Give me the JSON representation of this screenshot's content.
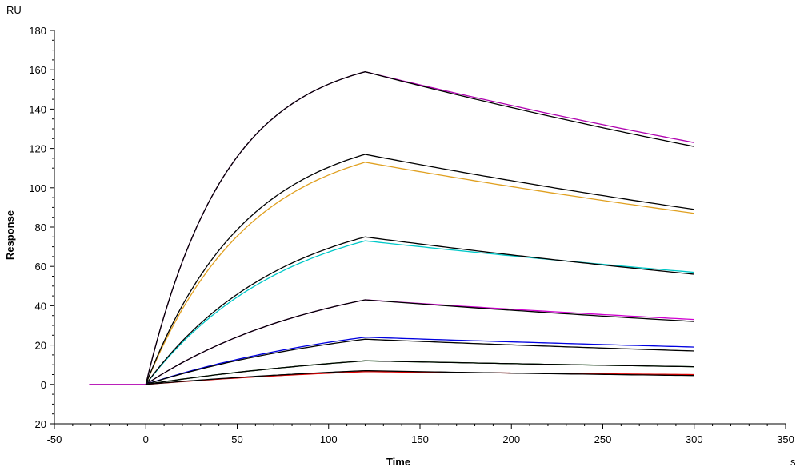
{
  "chart_data": {
    "type": "line",
    "title": "",
    "xlabel": "Time",
    "ylabel": "Response",
    "x_unit": "s",
    "y_unit": "RU",
    "xlim": [
      -50,
      350
    ],
    "ylim": [
      -20,
      180
    ],
    "x_ticks": [
      -50,
      0,
      50,
      100,
      150,
      200,
      250,
      300,
      350
    ],
    "y_ticks": [
      -20,
      0,
      20,
      40,
      60,
      80,
      100,
      120,
      140,
      160,
      180
    ],
    "x_tick_labels": [
      "-50",
      "0",
      "50",
      "100",
      "150",
      "200",
      "250",
      "300",
      "350"
    ],
    "y_tick_labels": [
      "-20",
      "0",
      "20",
      "40",
      "60",
      "80",
      "100",
      "120",
      "140",
      "160",
      "180"
    ],
    "grid": false,
    "legend": "none",
    "association_end": 120,
    "dissociation_end": 300,
    "baseline_start": -31,
    "series": [
      {
        "color": "#b000b0",
        "association_end_value": 159,
        "end_value": 123
      },
      {
        "color": "#000000",
        "association_end_value": 159,
        "end_value": 121
      },
      {
        "color": "#e0a020",
        "association_end_value": 113,
        "end_value": 87
      },
      {
        "color": "#000000",
        "association_end_value": 117,
        "end_value": 89
      },
      {
        "color": "#00c8c8",
        "association_end_value": 73,
        "end_value": 57
      },
      {
        "color": "#000000",
        "association_end_value": 75,
        "end_value": 56
      },
      {
        "color": "#d000d0",
        "association_end_value": 43,
        "end_value": 33
      },
      {
        "color": "#000000",
        "association_end_value": 43,
        "end_value": 32
      },
      {
        "color": "#0000e0",
        "association_end_value": 24,
        "end_value": 19
      },
      {
        "color": "#000000",
        "association_end_value": 23,
        "end_value": 17
      },
      {
        "color": "#008000",
        "association_end_value": 12,
        "end_value": 9
      },
      {
        "color": "#000000",
        "association_end_value": 12,
        "end_value": 9
      },
      {
        "color": "#e00000",
        "association_end_value": 6.5,
        "end_value": 5
      },
      {
        "color": "#000000",
        "association_end_value": 7,
        "end_value": 4.5
      }
    ]
  }
}
